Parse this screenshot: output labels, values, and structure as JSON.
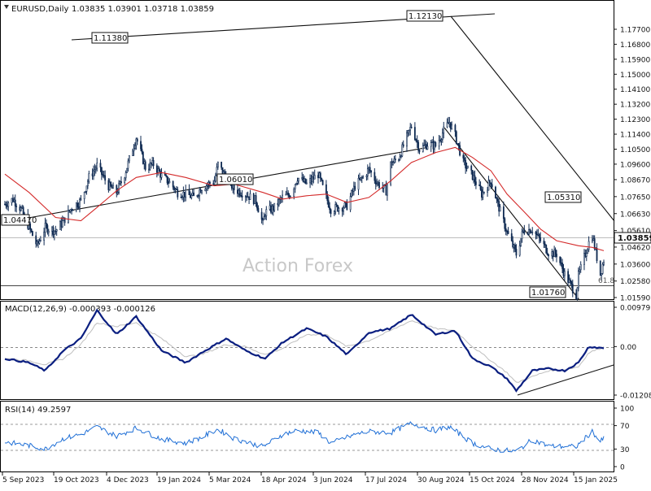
{
  "header": {
    "symbol_label": "EURUSD,Daily",
    "ohlc_label": "1.03835 1.03901 1.03718 1.03859"
  },
  "watermark": "Action Forex",
  "colors": {
    "candle": "#0f2a52",
    "ma": "#d42a2a",
    "macd_line": "#0a1e80",
    "macd_signal": "#bebebe",
    "rsi_line": "#1f6fd6",
    "trendline": "#111111"
  },
  "chart_data": [
    {
      "type": "candlestick",
      "panel": "price",
      "title": "EURUSD,Daily",
      "current_price": "1.03859",
      "y_ticks": [
        "1.17700",
        "1.16800",
        "1.15900",
        "1.15000",
        "1.14100",
        "1.13200",
        "1.12300",
        "1.11400",
        "1.10500",
        "1.09600",
        "1.08670",
        "1.07650",
        "1.06630",
        "1.05610",
        "1.04620",
        "1.03600",
        "1.02580",
        "1.01590"
      ],
      "x_ticks": [
        "5 Sep 2023",
        "19 Oct 2023",
        "4 Dec 2023",
        "19 Jan 2024",
        "5 Mar 2024",
        "18 Apr 2024",
        "3 Jun 2024",
        "17 Jul 2024",
        "30 Aug 2024",
        "15 Oct 2024",
        "28 Nov 2024",
        "15 Jan 2025"
      ],
      "price_labels": [
        "1.04470",
        "1.11380",
        "1.06010",
        "1.12130",
        "1.05310",
        "1.01760"
      ],
      "fib_label": "61.8",
      "close_path": [
        [
          "2023-09-05",
          1.072
        ],
        [
          "2023-09-12",
          1.075
        ],
        [
          "2023-09-19",
          1.069
        ],
        [
          "2023-09-26",
          1.058
        ],
        [
          "2023-10-03",
          1.047
        ],
        [
          "2023-10-10",
          1.058
        ],
        [
          "2023-10-19",
          1.056
        ],
        [
          "2023-10-26",
          1.062
        ],
        [
          "2023-11-02",
          1.07
        ],
        [
          "2023-11-10",
          1.074
        ],
        [
          "2023-11-17",
          1.088
        ],
        [
          "2023-11-24",
          1.095
        ],
        [
          "2023-12-04",
          1.083
        ],
        [
          "2023-12-11",
          1.079
        ],
        [
          "2023-12-18",
          1.09
        ],
        [
          "2023-12-28",
          1.112
        ],
        [
          "2024-01-05",
          1.094
        ],
        [
          "2024-01-12",
          1.096
        ],
        [
          "2024-01-19",
          1.089
        ],
        [
          "2024-01-26",
          1.085
        ],
        [
          "2024-02-02",
          1.079
        ],
        [
          "2024-02-09",
          1.078
        ],
        [
          "2024-02-16",
          1.076
        ],
        [
          "2024-02-23",
          1.082
        ],
        [
          "2024-03-05",
          1.086
        ],
        [
          "2024-03-08",
          1.096
        ],
        [
          "2024-03-15",
          1.088
        ],
        [
          "2024-03-22",
          1.081
        ],
        [
          "2024-04-01",
          1.078
        ],
        [
          "2024-04-10",
          1.074
        ],
        [
          "2024-04-16",
          1.0601
        ],
        [
          "2024-04-18",
          1.067
        ],
        [
          "2024-04-26",
          1.07
        ],
        [
          "2024-05-03",
          1.076
        ],
        [
          "2024-05-10",
          1.078
        ],
        [
          "2024-05-16",
          1.088
        ],
        [
          "2024-05-24",
          1.084
        ],
        [
          "2024-06-03",
          1.09
        ],
        [
          "2024-06-10",
          1.076
        ],
        [
          "2024-06-14",
          1.069
        ],
        [
          "2024-06-21",
          1.07
        ],
        [
          "2024-06-28",
          1.071
        ],
        [
          "2024-07-05",
          1.083
        ],
        [
          "2024-07-12",
          1.088
        ],
        [
          "2024-07-17",
          1.093
        ],
        [
          "2024-07-24",
          1.085
        ],
        [
          "2024-08-01",
          1.08
        ],
        [
          "2024-08-05",
          1.096
        ],
        [
          "2024-08-12",
          1.1
        ],
        [
          "2024-08-23",
          1.119
        ],
        [
          "2024-08-30",
          1.105
        ],
        [
          "2024-09-06",
          1.108
        ],
        [
          "2024-09-13",
          1.107
        ],
        [
          "2024-09-20",
          1.116
        ],
        [
          "2024-09-25",
          1.1213
        ],
        [
          "2024-09-30",
          1.113
        ],
        [
          "2024-10-07",
          1.097
        ],
        [
          "2024-10-15",
          1.089
        ],
        [
          "2024-10-23",
          1.078
        ],
        [
          "2024-10-31",
          1.086
        ],
        [
          "2024-11-06",
          1.072
        ],
        [
          "2024-11-14",
          1.055
        ],
        [
          "2024-11-22",
          1.042
        ],
        [
          "2024-11-28",
          1.056
        ],
        [
          "2024-12-06",
          1.057
        ],
        [
          "2024-12-13",
          1.05
        ],
        [
          "2024-12-20",
          1.043
        ],
        [
          "2024-12-27",
          1.042
        ],
        [
          "2025-01-03",
          1.03
        ],
        [
          "2025-01-13",
          1.0176
        ],
        [
          "2025-01-15",
          1.029
        ],
        [
          "2025-01-24",
          1.049
        ],
        [
          "2025-01-27",
          1.0531
        ],
        [
          "2025-02-03",
          1.03
        ],
        [
          "2025-02-06",
          1.0386
        ]
      ],
      "moving_average_path": [
        [
          "2023-09-05",
          1.09
        ],
        [
          "2023-09-26",
          1.079
        ],
        [
          "2023-10-19",
          1.064
        ],
        [
          "2023-11-10",
          1.062
        ],
        [
          "2023-11-24",
          1.07
        ],
        [
          "2023-12-11",
          1.08
        ],
        [
          "2023-12-28",
          1.088
        ],
        [
          "2024-01-19",
          1.091
        ],
        [
          "2024-02-09",
          1.088
        ],
        [
          "2024-03-05",
          1.083
        ],
        [
          "2024-03-22",
          1.084
        ],
        [
          "2024-04-16",
          1.079
        ],
        [
          "2024-05-03",
          1.075
        ],
        [
          "2024-05-24",
          1.077
        ],
        [
          "2024-06-10",
          1.078
        ],
        [
          "2024-06-28",
          1.073
        ],
        [
          "2024-07-17",
          1.076
        ],
        [
          "2024-08-05",
          1.086
        ],
        [
          "2024-08-23",
          1.097
        ],
        [
          "2024-09-13",
          1.103
        ],
        [
          "2024-09-30",
          1.106
        ],
        [
          "2024-10-15",
          1.1
        ],
        [
          "2024-10-31",
          1.092
        ],
        [
          "2024-11-14",
          1.078
        ],
        [
          "2024-11-28",
          1.068
        ],
        [
          "2024-12-13",
          1.057
        ],
        [
          "2024-12-27",
          1.05
        ],
        [
          "2025-01-15",
          1.047
        ],
        [
          "2025-01-27",
          1.046
        ],
        [
          "2025-02-06",
          1.044
        ]
      ]
    },
    {
      "type": "line",
      "panel": "macd",
      "title": "MACD(12,26,9) -0.000393 -0.000126",
      "y_ticks": [
        "0.009795",
        "0.00",
        "-0.012081"
      ],
      "series": [
        {
          "name": "MACD",
          "points": [
            [
              "2023-09-05",
              -0.003
            ],
            [
              "2023-09-26",
              -0.004
            ],
            [
              "2023-10-10",
              -0.006
            ],
            [
              "2023-10-26",
              -0.001
            ],
            [
              "2023-11-10",
              0.002
            ],
            [
              "2023-11-24",
              0.009
            ],
            [
              "2023-12-11",
              0.003
            ],
            [
              "2023-12-28",
              0.0075
            ],
            [
              "2024-01-19",
              -0.001
            ],
            [
              "2024-02-09",
              -0.004
            ],
            [
              "2024-02-23",
              -0.0015
            ],
            [
              "2024-03-15",
              0.002
            ],
            [
              "2024-04-01",
              -0.001
            ],
            [
              "2024-04-18",
              -0.003
            ],
            [
              "2024-05-03",
              0.001
            ],
            [
              "2024-05-24",
              0.0045
            ],
            [
              "2024-06-10",
              0.0025
            ],
            [
              "2024-06-28",
              -0.002
            ],
            [
              "2024-07-17",
              0.0035
            ],
            [
              "2024-08-05",
              0.0045
            ],
            [
              "2024-08-23",
              0.008
            ],
            [
              "2024-09-13",
              0.003
            ],
            [
              "2024-09-30",
              0.004
            ],
            [
              "2024-10-15",
              -0.003
            ],
            [
              "2024-10-31",
              -0.005
            ],
            [
              "2024-11-14",
              -0.008
            ],
            [
              "2024-11-22",
              -0.011
            ],
            [
              "2024-12-06",
              -0.006
            ],
            [
              "2024-12-20",
              -0.0055
            ],
            [
              "2025-01-03",
              -0.006
            ],
            [
              "2025-01-15",
              -0.004
            ],
            [
              "2025-01-24",
              0.0
            ],
            [
              "2025-02-06",
              -0.0004
            ]
          ]
        },
        {
          "name": "Signal",
          "points": [
            [
              "2023-09-05",
              -0.003
            ],
            [
              "2023-09-26",
              -0.0035
            ],
            [
              "2023-10-10",
              -0.0045
            ],
            [
              "2023-10-26",
              -0.003
            ],
            [
              "2023-11-10",
              0.0005
            ],
            [
              "2023-11-24",
              0.006
            ],
            [
              "2023-12-11",
              0.005
            ],
            [
              "2023-12-28",
              0.006
            ],
            [
              "2024-01-19",
              0.002
            ],
            [
              "2024-02-09",
              -0.0025
            ],
            [
              "2024-02-23",
              -0.002
            ],
            [
              "2024-03-15",
              0.0005
            ],
            [
              "2024-04-01",
              0.0
            ],
            [
              "2024-04-18",
              -0.002
            ],
            [
              "2024-05-03",
              -0.0005
            ],
            [
              "2024-05-24",
              0.003
            ],
            [
              "2024-06-10",
              0.003
            ],
            [
              "2024-06-28",
              0.0
            ],
            [
              "2024-07-17",
              0.0015
            ],
            [
              "2024-08-05",
              0.004
            ],
            [
              "2024-08-23",
              0.0065
            ],
            [
              "2024-09-13",
              0.0045
            ],
            [
              "2024-09-30",
              0.004
            ],
            [
              "2024-10-15",
              0.0
            ],
            [
              "2024-10-31",
              -0.0035
            ],
            [
              "2024-11-14",
              -0.0065
            ],
            [
              "2024-11-22",
              -0.009
            ],
            [
              "2024-12-06",
              -0.0075
            ],
            [
              "2024-12-20",
              -0.006
            ],
            [
              "2025-01-03",
              -0.0058
            ],
            [
              "2025-01-15",
              -0.005
            ],
            [
              "2025-01-24",
              -0.0015
            ],
            [
              "2025-02-06",
              -0.0001
            ]
          ]
        }
      ]
    },
    {
      "type": "line",
      "panel": "rsi",
      "title": "RSI(14) 49.2597",
      "y_ticks": [
        "100",
        "70",
        "30",
        "0"
      ],
      "series": [
        {
          "name": "RSI",
          "points": [
            [
              "2023-09-05",
              42
            ],
            [
              "2023-09-26",
              36
            ],
            [
              "2023-10-10",
              30
            ],
            [
              "2023-10-26",
              48
            ],
            [
              "2023-11-10",
              55
            ],
            [
              "2023-11-24",
              68
            ],
            [
              "2023-12-11",
              52
            ],
            [
              "2023-12-28",
              66
            ],
            [
              "2024-01-19",
              47
            ],
            [
              "2024-02-09",
              40
            ],
            [
              "2024-02-23",
              50
            ],
            [
              "2024-03-08",
              64
            ],
            [
              "2024-03-22",
              48
            ],
            [
              "2024-04-16",
              34
            ],
            [
              "2024-05-03",
              55
            ],
            [
              "2024-05-16",
              62
            ],
            [
              "2024-06-03",
              58
            ],
            [
              "2024-06-14",
              40
            ],
            [
              "2024-07-05",
              55
            ],
            [
              "2024-07-17",
              60
            ],
            [
              "2024-08-05",
              58
            ],
            [
              "2024-08-23",
              74
            ],
            [
              "2024-09-13",
              62
            ],
            [
              "2024-09-25",
              68
            ],
            [
              "2024-10-15",
              40
            ],
            [
              "2024-10-31",
              30
            ],
            [
              "2024-11-22",
              26
            ],
            [
              "2024-12-06",
              46
            ],
            [
              "2024-12-20",
              35
            ],
            [
              "2025-01-13",
              34
            ],
            [
              "2025-01-27",
              60
            ],
            [
              "2025-02-03",
              42
            ],
            [
              "2025-02-06",
              49.26
            ]
          ]
        }
      ]
    }
  ]
}
